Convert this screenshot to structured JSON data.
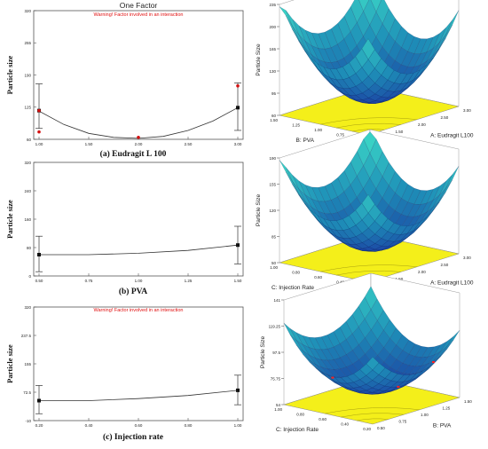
{
  "figure": {
    "one_factor_title": "One Factor",
    "warning": "Warning! Factor involved in an interaction"
  },
  "chart_data": [
    {
      "type": "line",
      "panel_caption": "(a) Eudragit L 100",
      "title": "One Factor",
      "warning": "Warning! Factor involved in an interaction",
      "ylabel": "Particle size",
      "xlabel": "",
      "xlim": [
        1.0,
        3.0
      ],
      "ylim": [
        60,
        320
      ],
      "x_ticks": [
        "1.00",
        "1.50",
        "2.00",
        "2.50",
        "3.00"
      ],
      "y_ticks": [
        "60",
        "125",
        "190",
        "255",
        "320"
      ],
      "curve": {
        "x": [
          1.0,
          1.25,
          1.5,
          1.75,
          2.0,
          2.25,
          2.5,
          2.75,
          3.0
        ],
        "y": [
          117,
          90,
          72,
          64,
          62,
          66,
          78,
          97,
          124
        ]
      },
      "design_points": {
        "x": [
          1.0,
          1.0,
          2.0,
          3.0
        ],
        "y": [
          118,
          75,
          64,
          168
        ]
      },
      "interval_bars": [
        {
          "x": 1.0,
          "low": 82,
          "mid": 118,
          "high": 172
        },
        {
          "x": 3.0,
          "low": 78,
          "mid": 124,
          "high": 174
        }
      ],
      "grid": false
    },
    {
      "type": "line",
      "panel_caption": "(b) PVA",
      "ylabel": "Particle size",
      "xlabel": "",
      "xlim": [
        0.5,
        1.5
      ],
      "ylim": [
        0,
        320
      ],
      "x_ticks": [
        "0.50",
        "0.75",
        "1.00",
        "1.25",
        "1.50"
      ],
      "y_ticks": [
        "0",
        "80",
        "160",
        "240",
        "320"
      ],
      "curve": {
        "x": [
          0.5,
          0.75,
          1.0,
          1.25,
          1.5
        ],
        "y": [
          60,
          60,
          64,
          72,
          87
        ]
      },
      "interval_bars": [
        {
          "x": 0.5,
          "low": 12,
          "mid": 60,
          "high": 112
        },
        {
          "x": 1.5,
          "low": 34,
          "mid": 87,
          "high": 140
        }
      ],
      "grid": false
    },
    {
      "type": "line",
      "panel_caption": "(c) Injection rate",
      "warning": "Warning! Factor involved in an interaction",
      "ylabel": "Particle size",
      "xlabel": "",
      "xlim": [
        0.2,
        1.0
      ],
      "ylim": [
        -10,
        320
      ],
      "x_ticks": [
        "0.20",
        "0.40",
        "0.60",
        "0.80",
        "1.00"
      ],
      "y_ticks": [
        "-10",
        "72.5",
        "155",
        "237.5",
        "320"
      ],
      "curve": {
        "x": [
          0.2,
          0.4,
          0.6,
          0.8,
          1.0
        ],
        "y": [
          48,
          48,
          54,
          63,
          78
        ]
      },
      "interval_bars": [
        {
          "x": 0.2,
          "low": 10,
          "mid": 48,
          "high": 92
        },
        {
          "x": 1.0,
          "low": 36,
          "mid": 78,
          "high": 122
        }
      ],
      "grid": false
    },
    {
      "type": "surface",
      "zlabel": "Particle Size",
      "xlabel": "A: Eudragit L100",
      "ylabel": "B: PVA",
      "z_ticks": [
        "60",
        "95",
        "130",
        "165",
        "200",
        "235"
      ],
      "x_ticks": [
        "1.00",
        "1.50",
        "2.00",
        "2.50",
        "3.00"
      ],
      "y_ticks": [
        "0.50",
        "0.75",
        "1.00",
        "1.25",
        "1.50"
      ],
      "zlim": [
        60,
        235
      ],
      "colors": {
        "low": "#1a2a9c",
        "mid": "#1e8fb8",
        "high": "#3fe0c8",
        "floor": "#f4ef1a"
      }
    },
    {
      "type": "surface",
      "zlabel": "Particle Size",
      "xlabel": "A: Eudragit L100",
      "ylabel": "C: Injection Rate",
      "z_ticks": [
        "50",
        "85",
        "120",
        "155",
        "190"
      ],
      "x_ticks": [
        "1.00",
        "1.50",
        "2.00",
        "2.50",
        "3.00"
      ],
      "y_ticks": [
        "0.20",
        "0.40",
        "0.60",
        "0.80",
        "1.00"
      ],
      "zlim": [
        50,
        190
      ],
      "colors": {
        "low": "#1a2a9c",
        "mid": "#1e8fb8",
        "high": "#3fe0c8",
        "floor": "#f4ef1a"
      }
    },
    {
      "type": "surface",
      "zlabel": "Particle Size",
      "xlabel": "B: PVA",
      "ylabel": "C: Injection Rate",
      "z_ticks": [
        "54",
        "75.75",
        "97.5",
        "119.25",
        "141"
      ],
      "x_ticks": [
        "0.50",
        "0.75",
        "1.00",
        "1.25",
        "1.50"
      ],
      "y_ticks": [
        "0.20",
        "0.40",
        "0.60",
        "0.80",
        "1.00"
      ],
      "zlim": [
        54,
        141
      ],
      "colors": {
        "low": "#1a2a9c",
        "mid": "#1e8fb8",
        "high": "#3fe0c8",
        "floor": "#f4ef1a"
      }
    }
  ]
}
